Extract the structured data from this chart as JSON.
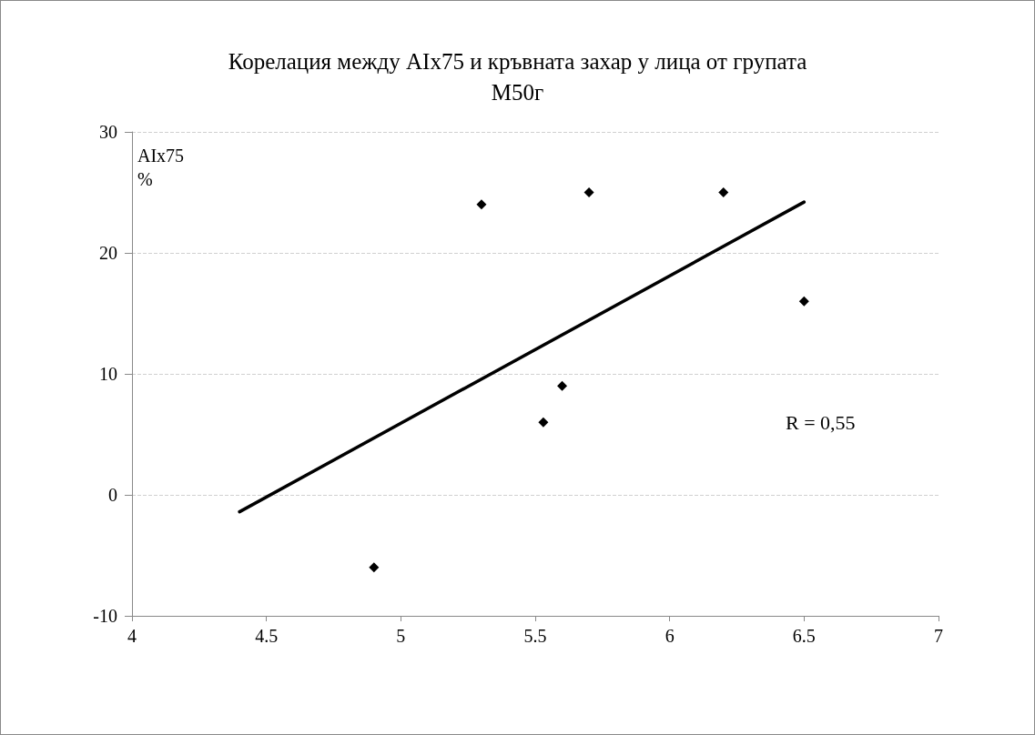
{
  "chart_data": {
    "type": "scatter",
    "title": "Корелация между AIx75 и кръвната захар у лица от групата М50г",
    "ylabel": "AIx75\n%",
    "series": [
      {
        "color": "#000000",
        "x": [
          4.9,
          5.3,
          5.53,
          5.6,
          5.7,
          6.2,
          6.5
        ],
        "values": [
          -6,
          24,
          6,
          9,
          25,
          25,
          16
        ]
      },
      {
        "type": "line",
        "color": "#000000",
        "marker": "none",
        "x": [
          4.4,
          6.5
        ],
        "values": [
          -1.4,
          24.2
        ]
      }
    ],
    "xlim": [
      4,
      7
    ],
    "xticks": [
      4,
      4.5,
      5,
      5.5,
      6,
      6.5,
      7
    ],
    "ylim": [
      -10,
      30
    ],
    "yticks": [
      -10,
      0,
      10,
      20,
      30
    ],
    "grid": "y",
    "marker": "diamond",
    "annotations": [
      "R = 0,55"
    ]
  }
}
